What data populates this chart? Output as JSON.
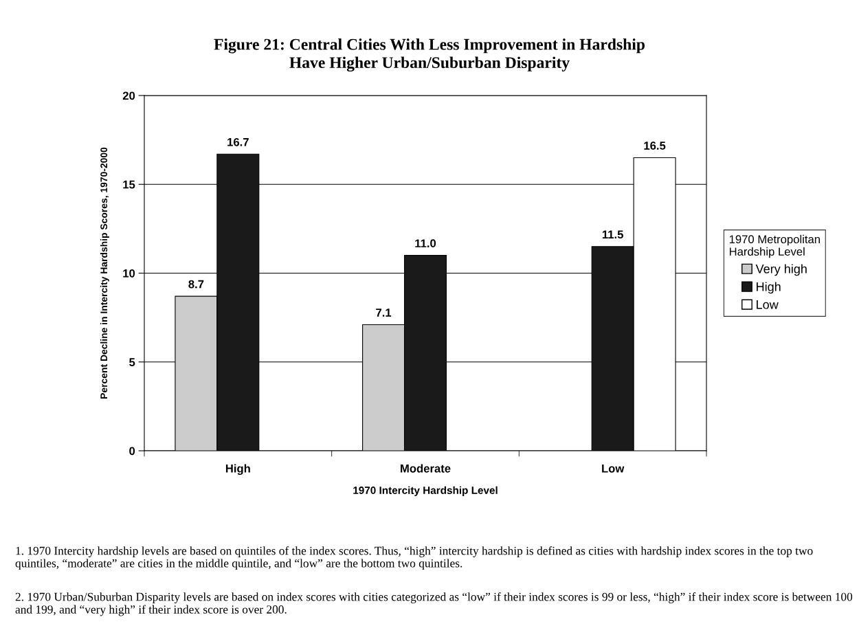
{
  "chart_data": {
    "type": "bar",
    "title": "Figure 21: Central Cities With Less Improvement in Hardship\nHave Higher Urban/Suburban Disparity",
    "xlabel": "1970 Intercity Hardship Level",
    "ylabel": "Percent Decline in Intercity Hardship Scores, 1970-2000",
    "legend_title": "1970 Metropolitan\nHardship Level",
    "categories": [
      "High",
      "Moderate",
      "Low"
    ],
    "series": [
      {
        "name": "Very high",
        "color": "#cccccc",
        "values": [
          8.7,
          7.1,
          null
        ],
        "value_labels": [
          "8.7",
          "7.1",
          null
        ]
      },
      {
        "name": "High",
        "color": "#1a1a1a",
        "values": [
          16.7,
          11.0,
          11.5
        ],
        "value_labels": [
          "16.7",
          "11.0",
          "11.5"
        ]
      },
      {
        "name": "Low",
        "color": "#ffffff",
        "values": [
          null,
          null,
          16.5
        ],
        "value_labels": [
          null,
          null,
          "16.5"
        ]
      }
    ],
    "ylim": [
      0,
      20
    ],
    "yticks": [
      0,
      5,
      10,
      15,
      20
    ],
    "grid": "y",
    "legend": "right",
    "annotations": [
      "1. 1970 Intercity hardship levels are based on quintiles of the index scores. Thus, “high” intercity hardship is defined as cities with hardship index scores in the top two quintiles, “moderate” are cities in the middle quintile, and “low” are the bottom two quintiles.",
      "2. 1970 Urban/Suburban Disparity levels are based on index scores with cities categorized as “low” if their index scores is 99 or less, “high” if their index score is between 100 and 199, and “very high” if their index score is over 200."
    ]
  }
}
